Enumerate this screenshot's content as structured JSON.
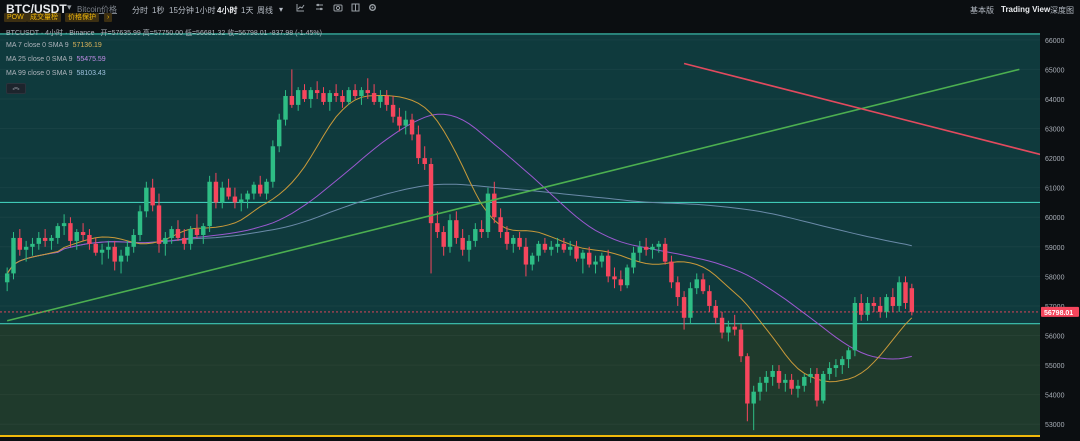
{
  "header": {
    "pair": "BTC/USDT",
    "pair_caret": "▾",
    "pair_sub": "Bitcoin价格",
    "intervals": [
      "分时",
      "1秒",
      "15分钟",
      "1小时",
      "4小时",
      "1天",
      "周线"
    ],
    "active_interval": "4小时",
    "interval_more": "▾",
    "tool_icons": [
      "indicator-icon",
      "settings-sliders-icon",
      "layout-icon",
      "camera-icon",
      "gear-icon"
    ],
    "right_tabs": [
      "基本版",
      "Trading View",
      "深度图"
    ],
    "active_tab": "Trading View",
    "tags": [
      "POW",
      "成交量榜",
      "价格保护",
      "›"
    ]
  },
  "legend": {
    "title": "BTCUSDT · 4小时 · Binance",
    "ohlc": "开=57635.99 高=57750.00 低=56681.32 收=56798.01 -837.98 (-1.45%)",
    "ma7_label": "MA 7 close 0 SMA 9",
    "ma7_value": "57136.19",
    "ma25_label": "MA 25 close 0 SMA 9",
    "ma25_value": "55475.59",
    "ma99_label": "MA 99 close 0 SMA 9",
    "ma99_value": "58103.43",
    "toggle": "︽"
  },
  "colors": {
    "up": "#2ebd85",
    "down": "#f6465d",
    "ma7": "#c99a3a",
    "ma25": "#9b59d0",
    "ma99": "#6a8aa8",
    "trend_up": "#4caf50",
    "trend_down": "#e24a5e",
    "resistance_zone": "#0f3a3d",
    "support_zone": "#1f3a2c",
    "bg": "#0b0e11"
  },
  "chart_data": {
    "type": "candlestick",
    "symbol": "BTCUSDT",
    "interval": "4小时",
    "ylim": [
      52500,
      66400
    ],
    "y_ticks": [
      53000,
      54000,
      55000,
      56000,
      57000,
      58000,
      59000,
      60000,
      61000,
      62000,
      63000,
      64000,
      65000,
      66000
    ],
    "last_price": 56798.01,
    "horizontal_levels": [
      66200,
      60500,
      56400,
      52600
    ],
    "zones": [
      {
        "from": 56400,
        "to": 66200,
        "kind": "resistance"
      },
      {
        "from": 52600,
        "to": 56400,
        "kind": "support"
      }
    ],
    "trendlines": [
      {
        "kind": "up",
        "from": [
          0,
          56500
        ],
        "to": [
          160,
          65000
        ]
      },
      {
        "kind": "down",
        "from": [
          107,
          65200
        ],
        "to": [
          290,
          55200
        ]
      }
    ],
    "candles": [
      [
        57800,
        58300,
        57500,
        58100
      ],
      [
        58100,
        59500,
        57900,
        59300
      ],
      [
        59300,
        59600,
        58700,
        58900
      ],
      [
        58900,
        59200,
        58500,
        59000
      ],
      [
        59000,
        59300,
        58700,
        59100
      ],
      [
        59100,
        59500,
        58900,
        59300
      ],
      [
        59300,
        59600,
        59000,
        59200
      ],
      [
        59200,
        59400,
        58900,
        59300
      ],
      [
        59300,
        59800,
        59100,
        59700
      ],
      [
        59700,
        60100,
        59400,
        59800
      ],
      [
        59800,
        60000,
        59000,
        59200
      ],
      [
        59200,
        59600,
        58900,
        59500
      ],
      [
        59500,
        59800,
        59200,
        59400
      ],
      [
        59400,
        59600,
        58900,
        59100
      ],
      [
        59100,
        59300,
        58700,
        58800
      ],
      [
        58800,
        59100,
        58400,
        58900
      ],
      [
        58900,
        59200,
        58600,
        59000
      ],
      [
        59000,
        59200,
        58200,
        58500
      ],
      [
        58500,
        58900,
        58100,
        58700
      ],
      [
        58700,
        59200,
        58500,
        59000
      ],
      [
        59000,
        59600,
        58800,
        59400
      ],
      [
        59400,
        60400,
        59200,
        60200
      ],
      [
        60200,
        61200,
        60000,
        61000
      ],
      [
        61000,
        61300,
        60200,
        60400
      ],
      [
        60400,
        60800,
        58800,
        59100
      ],
      [
        59100,
        59500,
        58700,
        59300
      ],
      [
        59300,
        59700,
        59100,
        59600
      ],
      [
        59600,
        59900,
        59200,
        59300
      ],
      [
        59300,
        59600,
        58900,
        59100
      ],
      [
        59100,
        59700,
        58900,
        59600
      ],
      [
        59600,
        60100,
        59300,
        59400
      ],
      [
        59400,
        59800,
        59100,
        59700
      ],
      [
        59700,
        61400,
        59500,
        61200
      ],
      [
        61200,
        61500,
        60300,
        60500
      ],
      [
        60500,
        61200,
        60300,
        61000
      ],
      [
        61000,
        61300,
        60600,
        60700
      ],
      [
        60700,
        61000,
        60300,
        60500
      ],
      [
        60500,
        60800,
        60200,
        60600
      ],
      [
        60600,
        60900,
        60300,
        60800
      ],
      [
        60800,
        61200,
        60600,
        61100
      ],
      [
        61100,
        61400,
        60700,
        60800
      ],
      [
        60800,
        61300,
        60600,
        61200
      ],
      [
        61200,
        62600,
        61000,
        62400
      ],
      [
        62400,
        63500,
        62200,
        63300
      ],
      [
        63300,
        64300,
        63100,
        64100
      ],
      [
        64100,
        65000,
        63700,
        63800
      ],
      [
        63800,
        64400,
        63600,
        64300
      ],
      [
        64300,
        64500,
        63900,
        64000
      ],
      [
        64000,
        64400,
        63700,
        64300
      ],
      [
        64300,
        64600,
        64000,
        64200
      ],
      [
        64200,
        64400,
        63800,
        63900
      ],
      [
        63900,
        64300,
        63600,
        64200
      ],
      [
        64200,
        64500,
        63900,
        64100
      ],
      [
        64100,
        64300,
        63700,
        63900
      ],
      [
        63900,
        64400,
        63800,
        64300
      ],
      [
        64300,
        64500,
        64000,
        64100
      ],
      [
        64100,
        64400,
        63800,
        64300
      ],
      [
        64300,
        64700,
        64000,
        64200
      ],
      [
        64200,
        64500,
        63800,
        63900
      ],
      [
        63900,
        64300,
        63700,
        64100
      ],
      [
        64100,
        64300,
        63600,
        63800
      ],
      [
        63800,
        64100,
        63200,
        63400
      ],
      [
        63400,
        63700,
        62900,
        63100
      ],
      [
        63100,
        63600,
        62800,
        63300
      ],
      [
        63300,
        63500,
        62600,
        62800
      ],
      [
        62800,
        63100,
        61800,
        62000
      ],
      [
        62000,
        62400,
        61600,
        61800
      ],
      [
        61800,
        62000,
        58100,
        59800
      ],
      [
        59800,
        60200,
        59300,
        59500
      ],
      [
        59500,
        59700,
        58700,
        59000
      ],
      [
        59000,
        60100,
        58800,
        59900
      ],
      [
        59900,
        60200,
        59100,
        59300
      ],
      [
        59300,
        59600,
        58700,
        58900
      ],
      [
        58900,
        59400,
        58500,
        59200
      ],
      [
        59200,
        59800,
        59000,
        59600
      ],
      [
        59600,
        59900,
        59300,
        59500
      ],
      [
        59500,
        61000,
        59300,
        60800
      ],
      [
        60800,
        61200,
        59800,
        60000
      ],
      [
        60000,
        60300,
        59300,
        59500
      ],
      [
        59500,
        59700,
        58900,
        59100
      ],
      [
        59100,
        59400,
        58800,
        59300
      ],
      [
        59300,
        59500,
        58900,
        59000
      ],
      [
        59000,
        59300,
        58000,
        58400
      ],
      [
        58400,
        58800,
        58200,
        58700
      ],
      [
        58700,
        59200,
        58500,
        59100
      ],
      [
        59100,
        59300,
        58800,
        58900
      ],
      [
        58900,
        59200,
        58700,
        59000
      ],
      [
        59000,
        59300,
        58800,
        59100
      ],
      [
        59100,
        59300,
        58800,
        58900
      ],
      [
        58900,
        59200,
        58700,
        59000
      ],
      [
        59000,
        59200,
        58500,
        58600
      ],
      [
        58600,
        58900,
        58100,
        58800
      ],
      [
        58800,
        59000,
        58300,
        58400
      ],
      [
        58400,
        58700,
        58100,
        58500
      ],
      [
        58500,
        58800,
        58300,
        58700
      ],
      [
        58700,
        58900,
        57800,
        58000
      ],
      [
        58000,
        58300,
        57600,
        57900
      ],
      [
        57900,
        58200,
        57500,
        57700
      ],
      [
        57700,
        58400,
        57600,
        58300
      ],
      [
        58300,
        59000,
        58100,
        58800
      ],
      [
        58800,
        59200,
        58500,
        59000
      ],
      [
        59000,
        59300,
        58700,
        58900
      ],
      [
        58900,
        59100,
        58600,
        59000
      ],
      [
        59000,
        59200,
        58800,
        59100
      ],
      [
        59100,
        59300,
        58400,
        58500
      ],
      [
        58500,
        58700,
        57600,
        57800
      ],
      [
        57800,
        58000,
        57000,
        57300
      ],
      [
        57300,
        57500,
        56200,
        56600
      ],
      [
        56600,
        57800,
        56400,
        57600
      ],
      [
        57600,
        58100,
        57400,
        57900
      ],
      [
        57900,
        58100,
        57400,
        57500
      ],
      [
        57500,
        57700,
        56800,
        57000
      ],
      [
        57000,
        57200,
        56400,
        56600
      ],
      [
        56600,
        56800,
        55900,
        56100
      ],
      [
        56100,
        56500,
        55800,
        56300
      ],
      [
        56300,
        56700,
        56000,
        56200
      ],
      [
        56200,
        56400,
        55100,
        55300
      ],
      [
        55300,
        55400,
        53100,
        53700
      ],
      [
        53700,
        54300,
        52800,
        54100
      ],
      [
        54100,
        54600,
        53800,
        54400
      ],
      [
        54400,
        54800,
        54100,
        54600
      ],
      [
        54600,
        55000,
        54300,
        54800
      ],
      [
        54800,
        55000,
        54200,
        54400
      ],
      [
        54400,
        54700,
        54100,
        54500
      ],
      [
        54500,
        54700,
        54000,
        54200
      ],
      [
        54200,
        54500,
        53900,
        54300
      ],
      [
        54300,
        54700,
        54100,
        54600
      ],
      [
        54600,
        54900,
        54400,
        54700
      ],
      [
        54700,
        54900,
        53600,
        53800
      ],
      [
        53800,
        54800,
        53700,
        54700
      ],
      [
        54700,
        55100,
        54500,
        54900
      ],
      [
        54900,
        55200,
        54600,
        55000
      ],
      [
        55000,
        55300,
        54700,
        55200
      ],
      [
        55200,
        55600,
        54900,
        55500
      ],
      [
        55500,
        57300,
        55300,
        57100
      ],
      [
        57100,
        57400,
        56500,
        56700
      ],
      [
        56700,
        57300,
        56500,
        57100
      ],
      [
        57100,
        57300,
        56800,
        57000
      ],
      [
        57000,
        57300,
        56600,
        56800
      ],
      [
        56800,
        57400,
        56600,
        57300
      ],
      [
        57300,
        57600,
        56800,
        57000
      ],
      [
        57000,
        58000,
        56800,
        57800
      ],
      [
        57800,
        58000,
        56900,
        57100
      ],
      [
        57600,
        57750,
        56680,
        56800
      ]
    ]
  }
}
